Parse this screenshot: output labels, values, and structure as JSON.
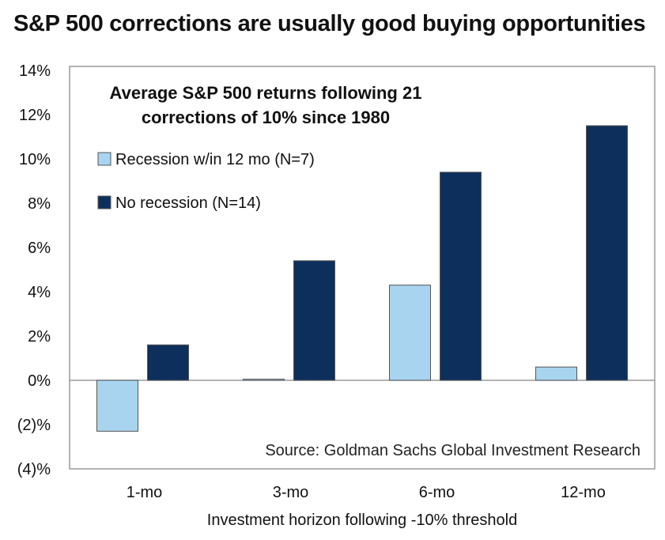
{
  "headline": "S&P 500 corrections are usually good buying opportunities",
  "chart_data": {
    "type": "bar",
    "title": [
      "Average S&P 500 returns following 21",
      "corrections of 10% since 1980"
    ],
    "categories": [
      "1-mo",
      "3-mo",
      "6-mo",
      "12-mo"
    ],
    "series": [
      {
        "name": "Recession w/in 12 mo (N=7)",
        "color": "#a8d4f0",
        "values": [
          -2.3,
          0.05,
          4.3,
          0.6
        ]
      },
      {
        "name": "No recession (N=14)",
        "color": "#0d2f5c",
        "values": [
          1.6,
          5.4,
          9.4,
          11.5
        ]
      }
    ],
    "ylim": [
      -4,
      14
    ],
    "yticks": [
      14,
      12,
      10,
      8,
      6,
      4,
      2,
      0,
      -2,
      -4
    ],
    "ytick_labels": [
      "14%",
      "12%",
      "10%",
      "8%",
      "6%",
      "4%",
      "2%",
      "0%",
      "(2)%",
      "(4)%"
    ],
    "xlabel": "Investment horizon following -10% threshold",
    "ylabel": "",
    "legend_position": "top-left",
    "annotation": "Source: Goldman Sachs Global Investment Research",
    "grid": false
  }
}
